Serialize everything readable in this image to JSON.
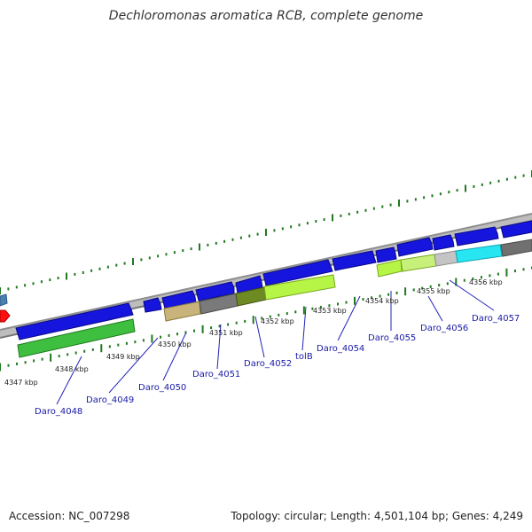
{
  "title": "Dechloromonas aromatica RCB, complete genome",
  "footer": {
    "accession": "Accession: NC_007298",
    "summary": "Topology: circular; Length: 4,501,104 bp; Genes: 4,249"
  },
  "colors": {
    "backbone": "#8e8e8e",
    "tick": "#1f7a1f",
    "gene_label": "#1a1aa6",
    "forward_gene": "#1515dd",
    "reverse_gene": "#33bb33"
  },
  "kbp_labels": [
    "4347 kbp",
    "4348 kbp",
    "4349 kbp",
    "4350 kbp",
    "4351 kbp",
    "4352 kbp",
    "4353 kbp",
    "4354 kbp",
    "4355 kbp",
    "4356 kbp"
  ],
  "gene_labels": [
    "Daro_4048",
    "Daro_4049",
    "Daro_4050",
    "Daro_4051",
    "Daro_4052",
    "tolB",
    "Daro_4054",
    "Daro_4055",
    "Daro_4056",
    "Daro_4057"
  ]
}
